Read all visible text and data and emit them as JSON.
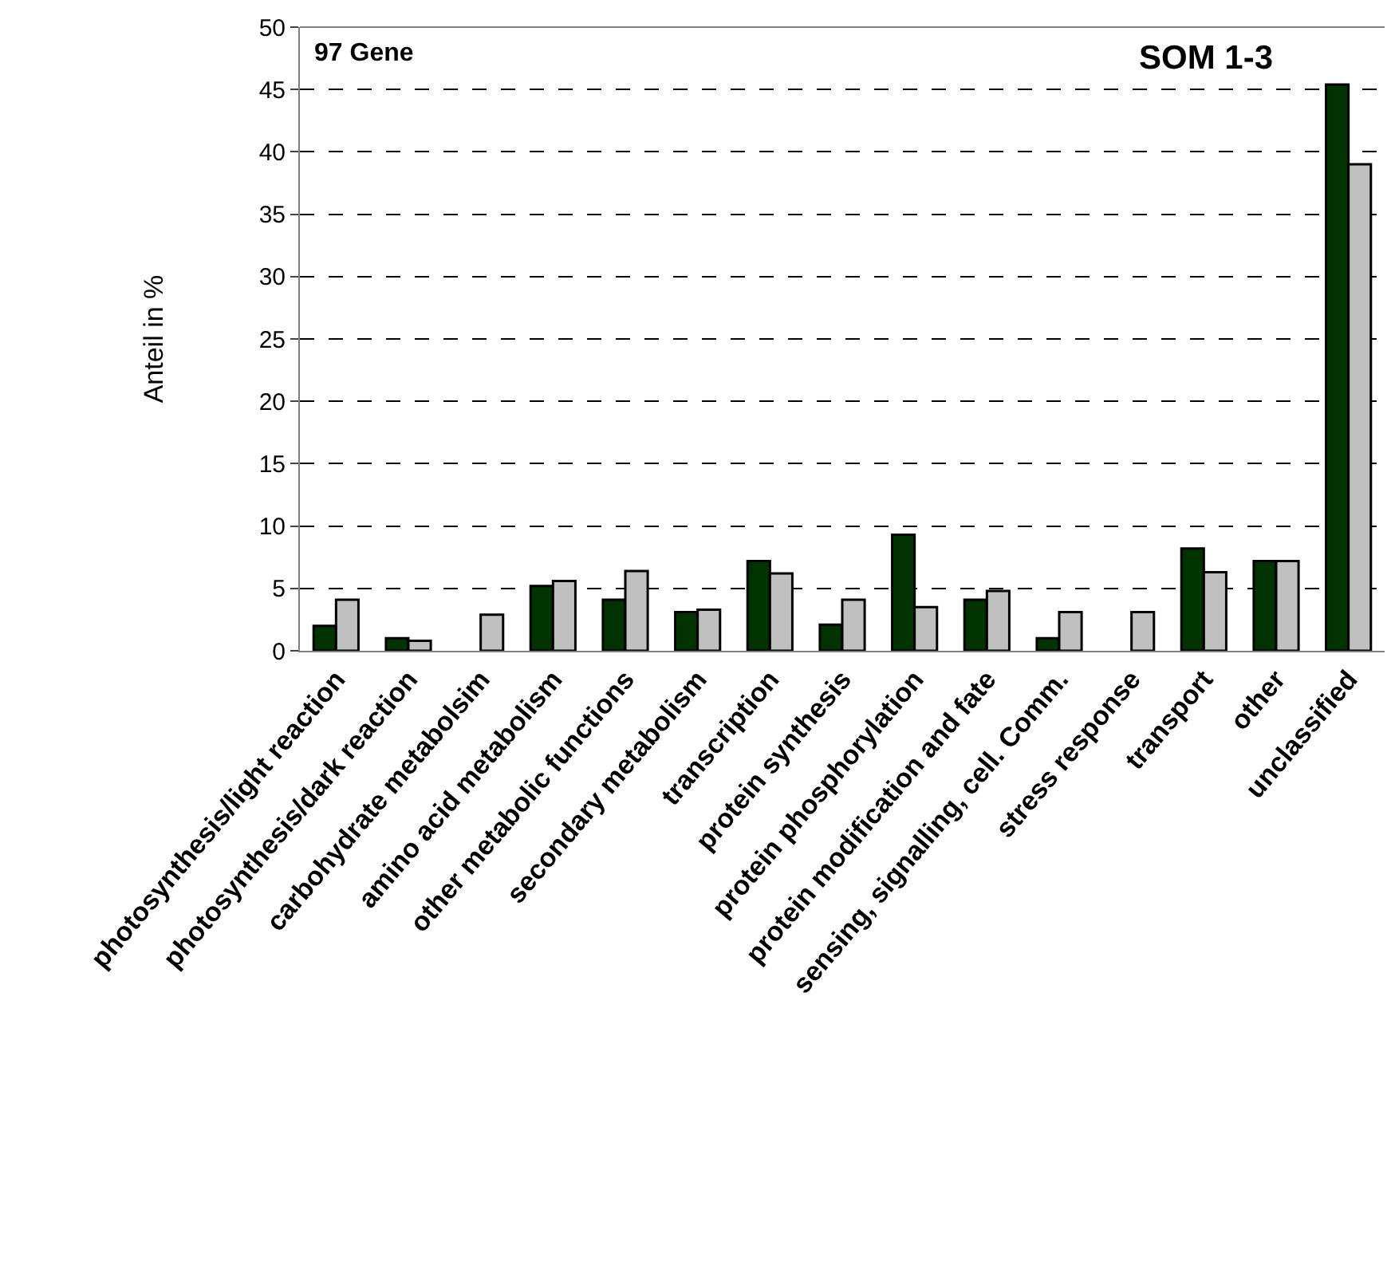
{
  "chart_data": {
    "type": "bar",
    "ylabel": "Anteil in %",
    "annotations": [
      "97 Gene",
      "SOM 1-3"
    ],
    "categories": [
      "photosynthesis/light reaction",
      "photosynthesis/dark reaction",
      "carbohydrate metabolsim",
      "amino acid metabolism",
      "other metabolic functions",
      "secondary metabolism",
      "transcription",
      "protein synthesis",
      "protein phosphorylation",
      "protein modification and fate",
      "sensing, signalling, cell. Comm.",
      "stress response",
      "transport",
      "other",
      "unclassified"
    ],
    "series": [
      {
        "color": "#003300",
        "values": [
          2.0,
          1.0,
          0,
          5.2,
          4.1,
          3.1,
          7.2,
          2.1,
          9.3,
          4.1,
          1.0,
          0,
          8.2,
          7.2,
          45.4
        ]
      },
      {
        "color": "#c0c0c0",
        "values": [
          4.1,
          0.8,
          2.9,
          5.6,
          6.4,
          3.3,
          6.2,
          4.1,
          3.5,
          4.8,
          3.1,
          3.1,
          6.3,
          7.2,
          39.0
        ]
      }
    ],
    "ylim": [
      0,
      50
    ],
    "yticks": [
      0,
      5,
      10,
      15,
      20,
      25,
      30,
      35,
      40,
      45,
      50
    ],
    "grid": "y"
  }
}
